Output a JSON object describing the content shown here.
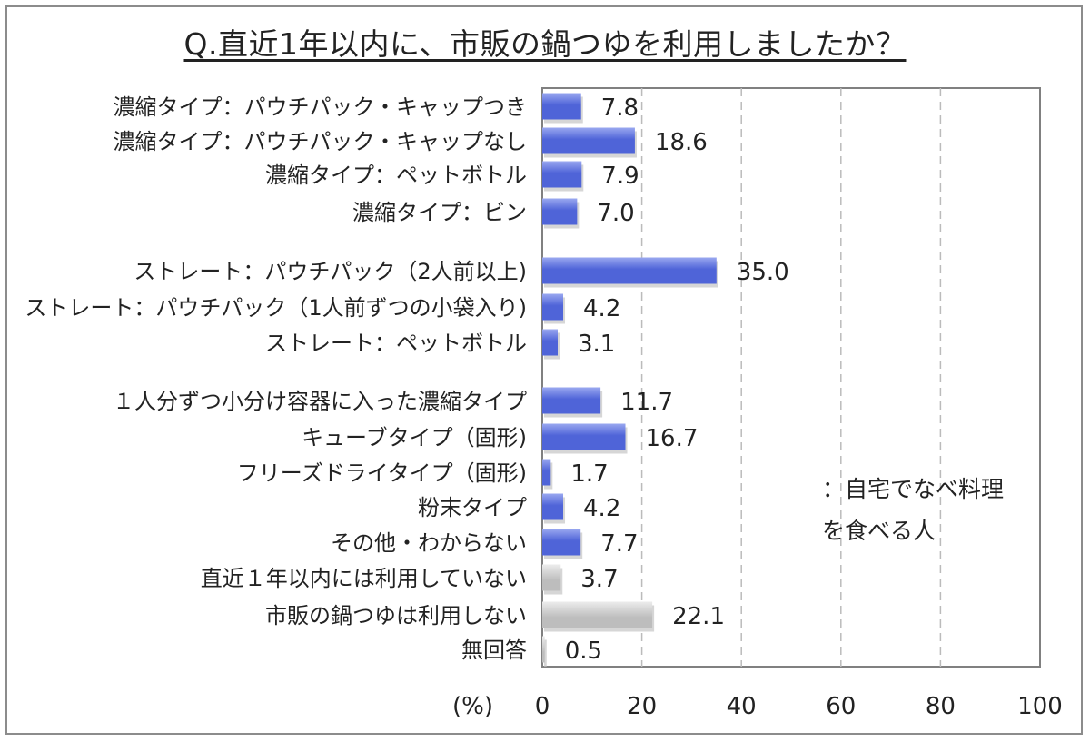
{
  "chart_data": {
    "type": "bar",
    "orientation": "horizontal",
    "title": "Q.直近1年以内に、市販の鍋つゆを利用しましたか？",
    "xlabel": "(%)",
    "xlim": [
      0,
      100
    ],
    "xticks": [
      "0",
      "20",
      "40",
      "60",
      "80",
      "100"
    ],
    "grid": "vertical dashed",
    "legend": "：自宅でなべ料理\nを食べる人",
    "categories": [
      "濃縮タイプ：パウチパック・キャップつき",
      "濃縮タイプ：パウチパック・キャップなし",
      "濃縮タイプ：ペットボトル",
      "濃縮タイプ：ビン",
      "ストレート：パウチパック（2人前以上)",
      "ストレート：パウチパック（1人前ずつの小袋入り)",
      "ストレート：ペットボトル",
      "１人分ずつ小分け容器に入った濃縮タイプ",
      "キューブタイプ（固形)",
      "フリーズドライタイプ（固形)",
      "粉末タイプ",
      "その他・わからない",
      "直近１年以内には利用していない",
      "市販の鍋つゆは利用しない",
      "無回答"
    ],
    "values": [
      7.8,
      18.6,
      7.9,
      7.0,
      35.0,
      4.2,
      3.1,
      11.7,
      16.7,
      1.7,
      4.2,
      7.7,
      3.7,
      22.1,
      0.5
    ],
    "value_labels": [
      "7.8",
      "18.6",
      "7.9",
      "7.0",
      "35.0",
      "4.2",
      "3.1",
      "11.7",
      "16.7",
      "1.7",
      "4.2",
      "7.7",
      "3.7",
      "22.1",
      "0.5"
    ],
    "groups": [
      0,
      0,
      0,
      0,
      1,
      1,
      1,
      2,
      2,
      2,
      2,
      2,
      3,
      3,
      3
    ],
    "colors": {
      "usage_bar": "#4f64d8",
      "usage_bar_light": "#9aa8f0",
      "non_usage_bar": "#bdbdbd",
      "non_usage_bar_light": "#ececec",
      "grid": "#bbbbbb",
      "axis": "#808080"
    }
  }
}
